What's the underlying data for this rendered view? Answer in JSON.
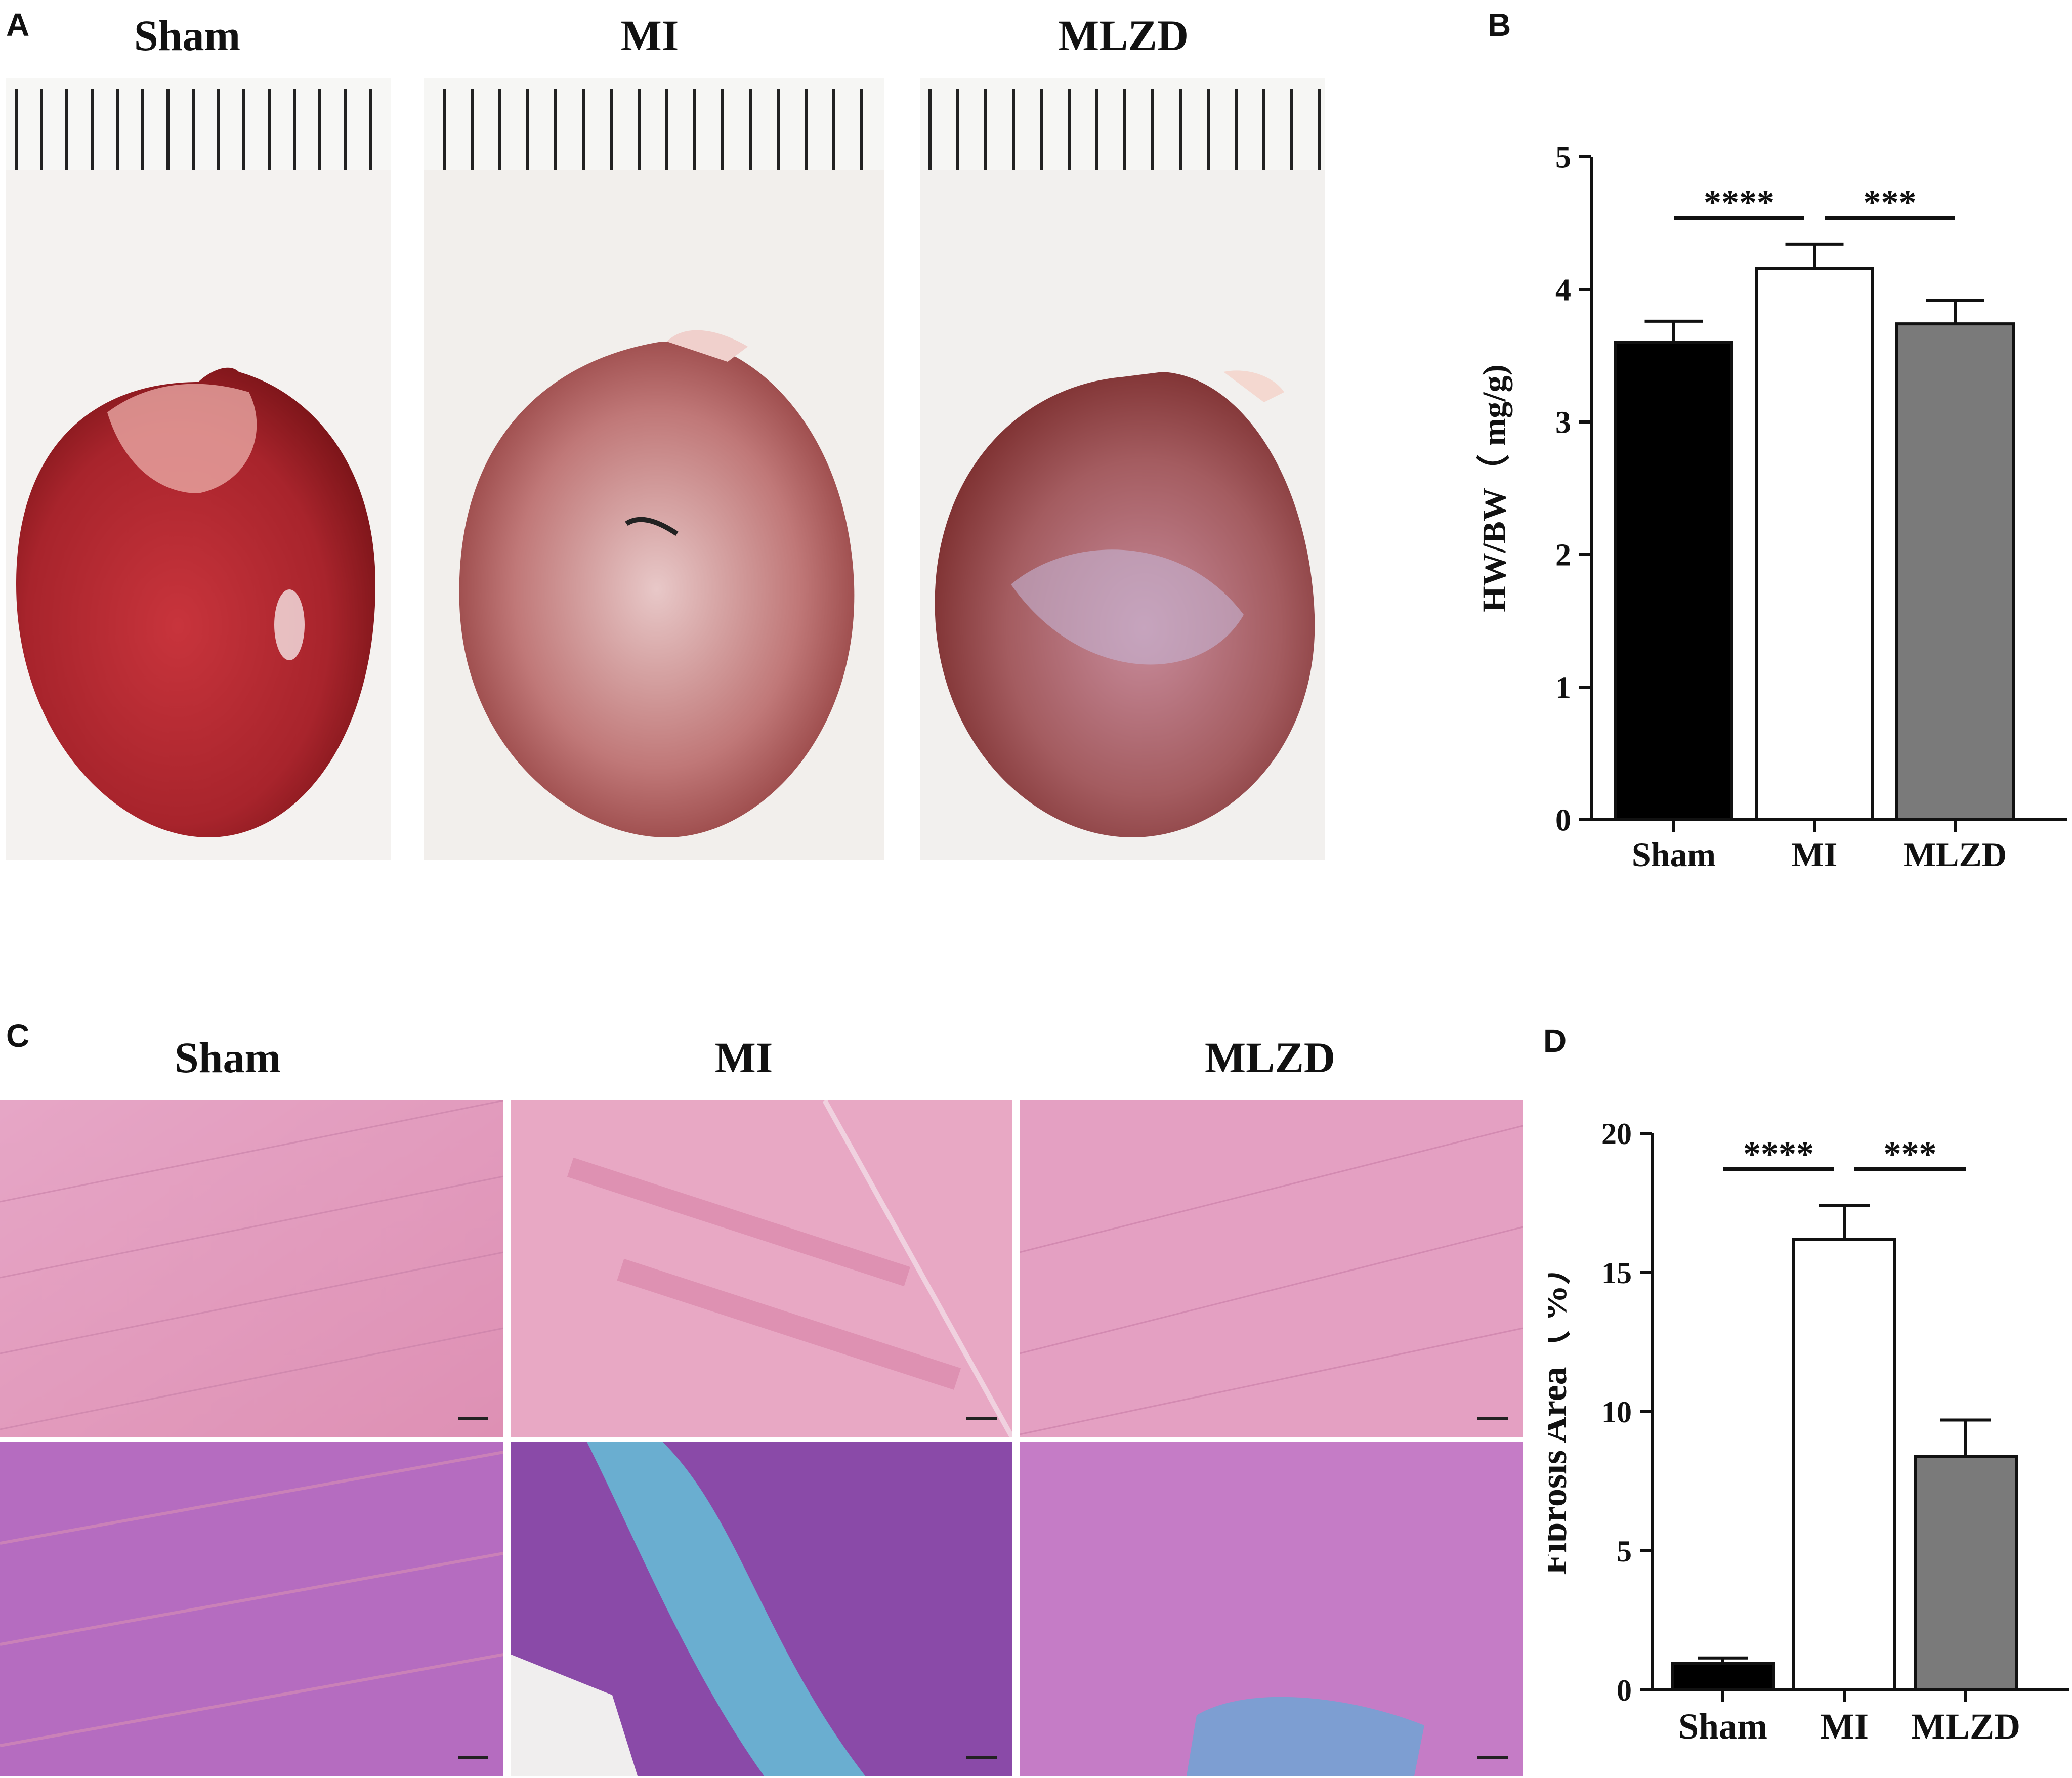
{
  "panels": {
    "A": {
      "letter": "A",
      "groups": [
        "Sham",
        "MI",
        "MLZD"
      ]
    },
    "B": {
      "letter": "B"
    },
    "C": {
      "letter": "C",
      "groups": [
        "Sham",
        "MI",
        "MLZD"
      ]
    },
    "D": {
      "letter": "D"
    }
  },
  "colors": {
    "sham_bar": "#000000",
    "mi_bar": "#ffffff",
    "mlzd_bar": "#7a7a7a",
    "heart_red": "#a8242c",
    "he_pink": "#e8a0c0",
    "masson_purple": "#a060b8",
    "masson_blue": "#6aaed0"
  },
  "chart_data": [
    {
      "type": "bar",
      "panel": "B",
      "categories": [
        "Sham",
        "MI",
        "MLZD"
      ],
      "values": [
        3.6,
        4.16,
        3.74
      ],
      "errors": [
        0.16,
        0.18,
        0.18
      ],
      "ylabel": "HW/BW（ mg/g)",
      "ylim": [
        0,
        5
      ],
      "yticks": [
        0,
        1,
        2,
        3,
        4,
        5
      ],
      "significance": [
        {
          "from": "Sham",
          "to": "MI",
          "label": "****"
        },
        {
          "from": "MI",
          "to": "MLZD",
          "label": "***"
        }
      ]
    },
    {
      "type": "bar",
      "panel": "D",
      "categories": [
        "Sham",
        "MI",
        "MLZD"
      ],
      "values": [
        0.95,
        16.2,
        8.4
      ],
      "errors": [
        0.2,
        1.2,
        1.3
      ],
      "ylabel": "Fibrosis Area（ %）",
      "ylim": [
        0,
        20
      ],
      "yticks": [
        0,
        5,
        10,
        15,
        20
      ],
      "significance": [
        {
          "from": "Sham",
          "to": "MI",
          "label": "****"
        },
        {
          "from": "MI",
          "to": "MLZD",
          "label": "***"
        }
      ]
    }
  ]
}
